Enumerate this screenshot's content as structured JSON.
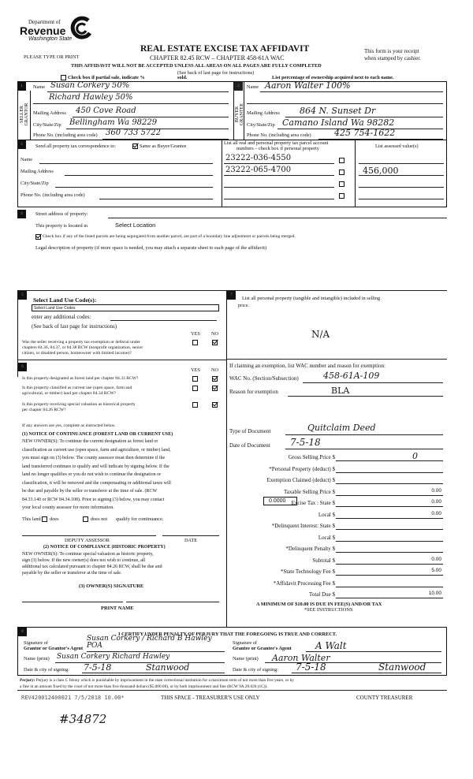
{
  "header": {
    "logo": {
      "line1": "Department of",
      "line2": "Revenue",
      "line3": "Washington State",
      "icon": "dor-swirl-logo"
    },
    "title": "REAL ESTATE EXCISE TAX AFFIDAVIT",
    "subtitle": "CHAPTER 82.45 RCW – CHAPTER 458-61A WAC",
    "please_type": "PLEASE TYPE OR PRINT",
    "receipt_1": "This form is your receipt",
    "receipt_2": "when stamped by cashier.",
    "warning": "THIS AFFIDAVIT WILL NOT BE ACCEPTED UNLESS ALL AREAS ON ALL PAGES ARE FULLY COMPLETED",
    "see_back": "(See back of last page for instructions)",
    "partial_sale": "Check box if partial sale, indicate %",
    "sold": "sold.",
    "percentage_note": "List percentage of ownership acquired next to each name."
  },
  "seller": {
    "side_label_1": "SELLER",
    "side_label_2": "GRANTOR",
    "name_label": "Name",
    "name_1": "Susan Corkery 50%",
    "name_2": "Richard Hawley 50%",
    "mailing_label": "Mailing Address",
    "mailing": "450 Cove Road",
    "city_label": "City/State/Zip",
    "city": "Bellingham Wa 98229",
    "phone_label": "Phone No. (including area code)",
    "phone": "360 733 5722"
  },
  "buyer": {
    "side_label_1": "BUYER",
    "side_label_2": "GRANTEE",
    "name_label": "Name",
    "name_1": "Aaron Walter 100%",
    "mailing_label": "Mailing Address",
    "mailing": "864 N. Sunset Dr",
    "city_label": "City/State/Zip",
    "city": "Camano Island Wa 98282",
    "phone_label": "Phone No. (including area code)",
    "phone": "425 754-1622"
  },
  "section3": {
    "send_to": "Send all property tax correspondence to:",
    "same_as": "Same as Buyer/Grantee",
    "same_checked": true,
    "name_label": "Name",
    "mailing_label": "Mailing Address",
    "city_label": "City/State/Zip",
    "phone_label": "Phone No. (including area code)",
    "parcel_header_1": "List all real and personal property tax parcel account",
    "parcel_header_2": "numbers – check box if personal property",
    "assessed_header": "List assessed value(s)",
    "parcels": [
      {
        "number": "23222-036-4550",
        "personal": false,
        "value": ""
      },
      {
        "number": "23222-065-4700",
        "personal": false,
        "value": "456,000"
      },
      {
        "number": "",
        "personal": false,
        "value": ""
      },
      {
        "number": "",
        "personal": false,
        "value": ""
      }
    ]
  },
  "section4": {
    "street_label": "Street address of property:",
    "located_label": "This property is located in",
    "location_select": "Select Location",
    "segregated_checked": true,
    "segregated": "Check box if any of the listed parcels are being segregated from another parcel, are part of a boundary line adjustment or parcels being merged.",
    "legal": "Legal description of property (if more space is needed, you may attach a separate sheet to each page of the affidavit)"
  },
  "section5": {
    "land_use_label": "Select Land Use Code(s):",
    "land_use_select": "Select Land Use Codes",
    "additional": "enter any additional codes:",
    "see_back": "(See back of last page for instructions)",
    "yes": "YES",
    "no": "NO",
    "q1_1": "Was the seller receiving a property tax exemption or deferral under",
    "q1_2": "chapters 84.36, 84.37, or 84.38 RCW (nonprofit organization, senior",
    "q1_3": "citizen, or disabled person, homeowner with limited income)?",
    "q1_answer": "NO"
  },
  "section6": {
    "yes": "YES",
    "no": "NO",
    "questions": [
      {
        "l1": "Is this property designated as forest land per chapter 84.33 RCW?",
        "l2": "",
        "answer": "NO"
      },
      {
        "l1": "Is this property classified as current use (open space, farm and",
        "l2": "agricultural, or timber) land per chapter 84.34 RCW?",
        "answer": "NO"
      },
      {
        "l1": "Is this property receiving special valuation as historical property",
        "l2": "per chapter 84.26 RCW?",
        "answer": "NO"
      }
    ],
    "if_yes": "If any answers are yes, complete as instructed below.",
    "notice1_title": "(1) NOTICE OF CONTINUANCE  (FOREST LAND OR CURRENT USE)",
    "notice1_lines": [
      "NEW OWNER(S): To continue the current designation as forest land or",
      "classification as current use (open space, farm and agriculture, or timber) land,",
      "you must sign on (3) below. The county assessor must then determine if the",
      "land transferred continues to qualify and will indicate by signing below. If the",
      "land no longer qualifies or you do not wish to continue the designation or",
      "classification, it will be removed and the compensating or additional taxes will",
      "be due and payable by the seller or transferor at the time of sale. (RCW",
      "84.33.140 or RCW 84.34.108). Prior to signing (3) below, you may contact",
      "your local county assessor for more information."
    ],
    "this_land": "This land",
    "does": "does",
    "does_not": "does not",
    "qualify": "qualify for continuance.",
    "deputy": "DEPUTY ASSESSOR",
    "date": "DATE",
    "notice2_title": "(2) NOTICE OF COMPLIANCE (HISTORIC PROPERTY)",
    "notice2_lines": [
      "NEW OWNER(S): To continue special valuation as historic property,",
      "sign (3) below. If the new owner(s) does not wish to continue, all",
      "additional tax calculated pursuant to chapter 84.26 RCW, shall be due and",
      "payable by the seller or transferor at the time of sale."
    ],
    "owner_sig": "(3)  OWNER(S) SIGNATURE",
    "print_name": "PRINT NAME"
  },
  "section7": {
    "personal_1": "List all  personal property (tangible and intangible) included in selling",
    "personal_2": "price.",
    "personal_value": "N/A",
    "exemption_intro": "If claiming an exemption, list WAC number and reason for exemption:",
    "wac_label": "WAC No. (Section/Subsection)",
    "wac": "458-61A-109",
    "reason_label": "Reason for exemption",
    "reason": "BLA",
    "doc_type_label": "Type of Document",
    "doc_type": "Quitclaim Deed",
    "doc_date_label": "Date of Document",
    "doc_date": "7-5-18",
    "local_rate": "0.0000",
    "fees": [
      {
        "label": "Gross Selling Price $",
        "value": "0",
        "hand": true
      },
      {
        "label": "*Personal Property (deduct) $",
        "value": ""
      },
      {
        "label": "Exemption Claimed (deduct) $",
        "value": ""
      },
      {
        "label": "Taxable Selling Price $",
        "value": "0.00"
      },
      {
        "label": "Excise Tax : State $",
        "value": "0.00"
      },
      {
        "label": "Local $",
        "value": "0.00"
      },
      {
        "label": "*Delinquent Interest: State $",
        "value": ""
      },
      {
        "label": "Local $",
        "value": ""
      },
      {
        "label": "*Delinquent Penalty $",
        "value": ""
      },
      {
        "label": "Subtotal $",
        "value": "0.00"
      },
      {
        "label": "*State Technology Fee $",
        "value": "5.00"
      },
      {
        "label": "*Affidavit Processing Fee $",
        "value": ""
      },
      {
        "label": "Total Due $",
        "value": "10.00"
      }
    ],
    "minimum_1": "A MINIMUM OF $10.00 IS DUE IN FEE(S) AND/OR TAX",
    "minimum_2": "*SEE INSTRUCTIONS"
  },
  "section8": {
    "certify": "I CERTIFY UNDER PENALTY OF PERJURY THAT THE FOREGOING IS TRUE AND CORRECT.",
    "grantor_sig_1": "Signature of",
    "grantor_sig_2": "Grantor or Grantor's Agent",
    "grantor_signature": "Susan Corkery / Richard B Hawley POA",
    "grantee_sig_1": "Signature of",
    "grantee_sig_2": "Grantee or Grantee's Agent",
    "grantee_signature": "A Walt",
    "name_print_label": "Name (print)",
    "grantor_name": "Susan Corkery Richard Hawley",
    "grantee_name": "Aaron Walter",
    "date_city_label": "Date & city of signing:",
    "grantor_date": "7-5-18",
    "grantor_city": "Stanwood",
    "grantee_date": "7-5-18",
    "grantee_city": "Stanwood"
  },
  "perjury": {
    "label": "Perjury:",
    "text_1": "Perjury is a class C felony which is punishable by imprisonment in the state correctional institution for a maximum term of not more than five years, or by",
    "text_2": "a fine in an amount fixed by the court of not more than five thousand dollars ($5,000.00), or by both imprisonment and fine (RCW 9A.20.020 (1C))."
  },
  "footer": {
    "stamp": "REV420012400021 7/5/2018 10.00*",
    "treasurer_only": "THIS SPACE - TREASURER'S USE ONLY",
    "county_treasurer": "COUNTY TREASURER",
    "handwritten_number": "#34872"
  }
}
